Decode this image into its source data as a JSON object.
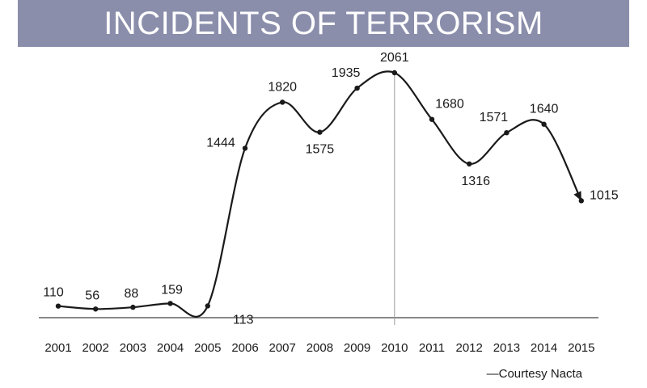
{
  "banner": {
    "title": "INCIDENTS OF TERRORISM"
  },
  "source": "—Courtesy Nacta",
  "chart_data": {
    "type": "line",
    "title": "INCIDENTS OF TERRORISM",
    "xlabel": "",
    "ylabel": "",
    "x": [
      "2001",
      "2002",
      "2003",
      "2004",
      "2005",
      "2006",
      "2007",
      "2008",
      "2009",
      "2010",
      "2011",
      "2012",
      "2013",
      "2014",
      "2015"
    ],
    "values": [
      110,
      56,
      88,
      159,
      113,
      1444,
      1820,
      1575,
      1935,
      2061,
      1680,
      1316,
      1571,
      1640,
      1015
    ],
    "ylim": [
      0,
      2200
    ],
    "grid": false,
    "highlight_x": "2010",
    "line_color": "#1a1a1a",
    "axis_color": "#888888"
  }
}
